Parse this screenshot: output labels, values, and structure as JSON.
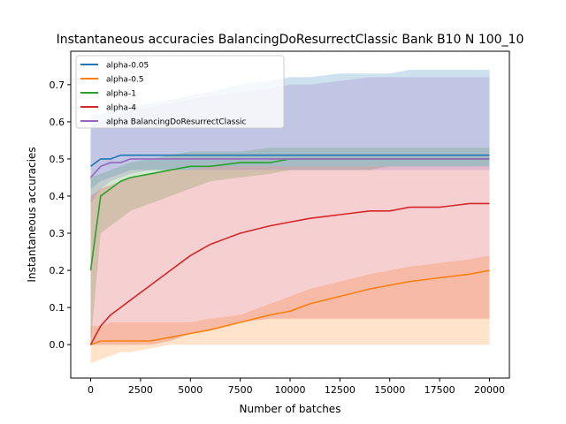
{
  "chart_data": {
    "type": "line",
    "title": "Instantaneous accuracies BalancingDoResurrectClassic Bank B10 N 100_10",
    "xlabel": "Number of batches",
    "ylabel": "Instantaneous accuracies",
    "xlim": [
      -1000,
      21000
    ],
    "ylim": [
      -0.09,
      0.79
    ],
    "x_ticks": [
      0,
      2500,
      5000,
      7500,
      10000,
      12500,
      15000,
      17500,
      20000
    ],
    "x_tick_labels": [
      "0",
      "2500",
      "5000",
      "7500",
      "10000",
      "12500",
      "15000",
      "17500",
      "20000"
    ],
    "y_ticks": [
      0.0,
      0.1,
      0.2,
      0.3,
      0.4,
      0.5,
      0.6,
      0.7
    ],
    "y_tick_labels": [
      "0.0",
      "0.1",
      "0.2",
      "0.3",
      "0.4",
      "0.5",
      "0.6",
      "0.7"
    ],
    "grid": false,
    "legend_position": "top-left",
    "x": [
      0,
      500,
      1000,
      1500,
      2000,
      3000,
      4000,
      5000,
      6000,
      7500,
      9000,
      10000,
      11000,
      12500,
      14000,
      15000,
      16000,
      17500,
      19000,
      20000
    ],
    "series": [
      {
        "name": "alpha-0.05",
        "color": "#1f77b4",
        "values": [
          0.48,
          0.5,
          0.5,
          0.51,
          0.51,
          0.51,
          0.51,
          0.51,
          0.51,
          0.51,
          0.51,
          0.51,
          0.51,
          0.51,
          0.51,
          0.51,
          0.51,
          0.51,
          0.51,
          0.51
        ],
        "band_low": [
          0.42,
          0.44,
          0.45,
          0.46,
          0.47,
          0.47,
          0.47,
          0.47,
          0.48,
          0.48,
          0.48,
          0.48,
          0.48,
          0.48,
          0.48,
          0.48,
          0.48,
          0.48,
          0.48,
          0.48
        ],
        "band_high": [
          0.62,
          0.62,
          0.63,
          0.63,
          0.64,
          0.65,
          0.66,
          0.67,
          0.68,
          0.7,
          0.71,
          0.72,
          0.72,
          0.73,
          0.73,
          0.73,
          0.74,
          0.74,
          0.74,
          0.74
        ]
      },
      {
        "name": "alpha-0.5",
        "color": "#ff7f0e",
        "values": [
          0.0,
          0.01,
          0.01,
          0.01,
          0.01,
          0.01,
          0.02,
          0.03,
          0.04,
          0.06,
          0.08,
          0.09,
          0.11,
          0.13,
          0.15,
          0.16,
          0.17,
          0.18,
          0.19,
          0.2
        ],
        "band_low": [
          -0.05,
          -0.04,
          -0.03,
          -0.02,
          -0.02,
          -0.01,
          0.0,
          0.0,
          0.0,
          0.0,
          0.0,
          0.0,
          0.0,
          0.0,
          0.0,
          0.0,
          0.0,
          0.0,
          0.0,
          0.0
        ],
        "band_high": [
          0.05,
          0.05,
          0.06,
          0.06,
          0.06,
          0.06,
          0.06,
          0.06,
          0.07,
          0.08,
          0.11,
          0.13,
          0.15,
          0.17,
          0.19,
          0.2,
          0.21,
          0.22,
          0.23,
          0.24
        ]
      },
      {
        "name": "alpha-1",
        "color": "#2ca02c",
        "values": [
          0.2,
          0.4,
          0.42,
          0.44,
          0.45,
          0.46,
          0.47,
          0.48,
          0.48,
          0.49,
          0.49,
          0.5,
          0.5,
          0.5,
          0.5,
          0.5,
          0.5,
          0.5,
          0.5,
          0.5
        ],
        "band_low": [
          0.0,
          0.3,
          0.32,
          0.34,
          0.36,
          0.38,
          0.4,
          0.42,
          0.44,
          0.45,
          0.46,
          0.47,
          0.47,
          0.47,
          0.47,
          0.48,
          0.48,
          0.48,
          0.48,
          0.48
        ],
        "band_high": [
          0.45,
          0.46,
          0.47,
          0.48,
          0.49,
          0.5,
          0.51,
          0.52,
          0.52,
          0.52,
          0.53,
          0.53,
          0.53,
          0.53,
          0.53,
          0.53,
          0.53,
          0.53,
          0.53,
          0.53
        ]
      },
      {
        "name": "alpha-4",
        "color": "#d62728",
        "values": [
          0.0,
          0.05,
          0.08,
          0.1,
          0.12,
          0.16,
          0.2,
          0.24,
          0.27,
          0.3,
          0.32,
          0.33,
          0.34,
          0.35,
          0.36,
          0.36,
          0.37,
          0.37,
          0.38,
          0.38
        ],
        "band_low": [
          0.0,
          0.0,
          0.0,
          0.0,
          0.0,
          0.0,
          0.01,
          0.03,
          0.04,
          0.06,
          0.07,
          0.07,
          0.07,
          0.07,
          0.07,
          0.07,
          0.07,
          0.07,
          0.07,
          0.07
        ],
        "band_high": [
          0.4,
          0.42,
          0.43,
          0.44,
          0.45,
          0.46,
          0.47,
          0.47,
          0.48,
          0.48,
          0.48,
          0.48,
          0.48,
          0.48,
          0.48,
          0.48,
          0.48,
          0.48,
          0.48,
          0.48
        ]
      },
      {
        "name": "alpha BalancingDoResurrectClassic",
        "color": "#9467bd",
        "values": [
          0.45,
          0.48,
          0.49,
          0.49,
          0.5,
          0.5,
          0.5,
          0.5,
          0.5,
          0.5,
          0.5,
          0.5,
          0.5,
          0.5,
          0.5,
          0.5,
          0.5,
          0.5,
          0.5,
          0.5
        ],
        "band_low": [
          0.38,
          0.42,
          0.44,
          0.45,
          0.46,
          0.47,
          0.47,
          0.47,
          0.47,
          0.47,
          0.47,
          0.47,
          0.47,
          0.47,
          0.47,
          0.47,
          0.47,
          0.47,
          0.47,
          0.47
        ],
        "band_high": [
          0.58,
          0.6,
          0.61,
          0.62,
          0.63,
          0.64,
          0.65,
          0.66,
          0.67,
          0.68,
          0.69,
          0.7,
          0.7,
          0.71,
          0.72,
          0.72,
          0.72,
          0.72,
          0.72,
          0.72
        ]
      }
    ]
  }
}
